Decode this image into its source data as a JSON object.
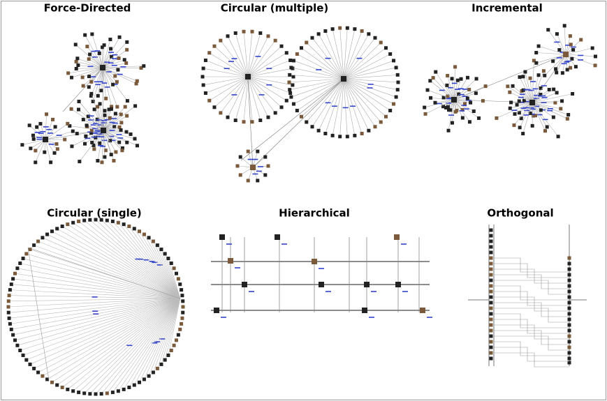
{
  "panels": [
    {
      "title": "Force-Directed"
    },
    {
      "title": "Circular (multiple)"
    },
    {
      "title": "Incremental"
    },
    {
      "title": "Circular (single)"
    },
    {
      "title": "Hierarchical"
    },
    {
      "title": "Orthogonal"
    }
  ]
}
